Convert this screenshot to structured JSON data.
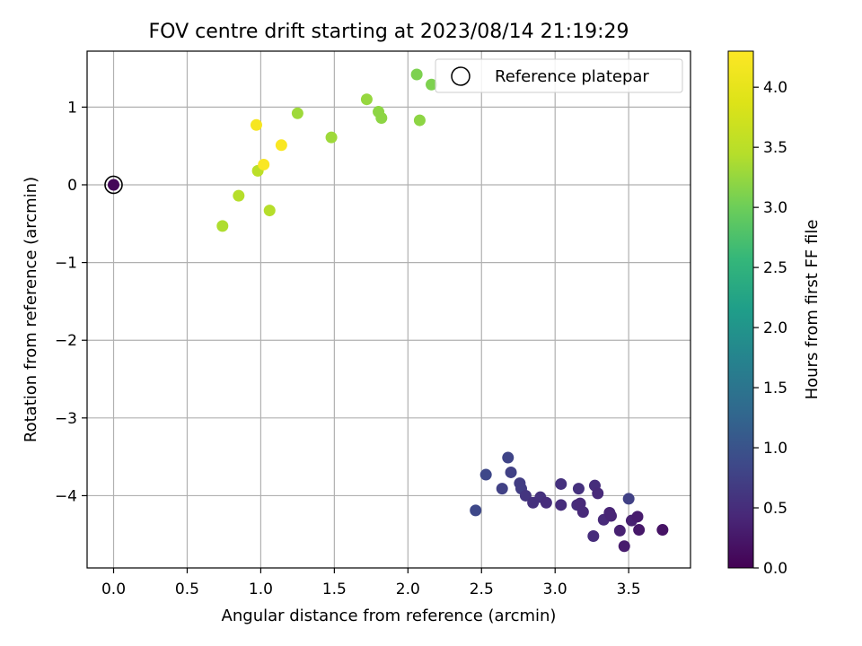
{
  "chart_data": {
    "type": "scatter",
    "title": "FOV centre drift starting at 2023/08/14 21:19:29",
    "xlabel": "Angular distance from reference (arcmin)",
    "ylabel": "Rotation from reference (arcmin)",
    "xlim": [
      -0.18,
      3.92
    ],
    "ylim": [
      -4.93,
      1.72
    ],
    "xticks": [
      0.0,
      0.5,
      1.0,
      1.5,
      2.0,
      2.5,
      3.0,
      3.5
    ],
    "xtick_labels": [
      "0.0",
      "0.5",
      "1.0",
      "1.5",
      "2.0",
      "2.5",
      "3.0",
      "3.5"
    ],
    "yticks": [
      -4,
      -3,
      -2,
      -1,
      0,
      1
    ],
    "ytick_labels": [
      "−4",
      "−3",
      "−2",
      "−1",
      "0",
      "1"
    ],
    "grid": true,
    "legend": {
      "placement": "top-right",
      "entries": [
        "Reference platepar"
      ]
    },
    "colorbar": {
      "label": "Hours from first FF file",
      "range": [
        0.0,
        4.3
      ],
      "ticks": [
        0.0,
        0.5,
        1.0,
        1.5,
        2.0,
        2.5,
        3.0,
        3.5,
        4.0
      ],
      "tick_labels": [
        "0.0",
        "0.5",
        "1.0",
        "1.5",
        "2.0",
        "2.5",
        "3.0",
        "3.5",
        "4.0"
      ],
      "colormap": "viridis"
    },
    "reference_point": {
      "x": 0.0,
      "y": 0.0
    },
    "points": [
      {
        "x": 0.0,
        "y": 0.0,
        "c": 0.05
      },
      {
        "x": 2.46,
        "y": -4.19,
        "c": 0.85
      },
      {
        "x": 2.53,
        "y": -3.73,
        "c": 0.85
      },
      {
        "x": 2.64,
        "y": -3.91,
        "c": 0.75
      },
      {
        "x": 2.68,
        "y": -3.51,
        "c": 0.8
      },
      {
        "x": 2.7,
        "y": -3.7,
        "c": 0.75
      },
      {
        "x": 2.76,
        "y": -3.84,
        "c": 0.7
      },
      {
        "x": 2.77,
        "y": -3.91,
        "c": 0.7
      },
      {
        "x": 2.8,
        "y": -4.0,
        "c": 0.6
      },
      {
        "x": 2.85,
        "y": -4.09,
        "c": 0.55
      },
      {
        "x": 2.9,
        "y": -4.02,
        "c": 0.55
      },
      {
        "x": 2.94,
        "y": -4.09,
        "c": 0.5
      },
      {
        "x": 3.04,
        "y": -3.85,
        "c": 0.55
      },
      {
        "x": 3.04,
        "y": -4.12,
        "c": 0.5
      },
      {
        "x": 3.16,
        "y": -3.91,
        "c": 0.55
      },
      {
        "x": 3.15,
        "y": -4.12,
        "c": 0.5
      },
      {
        "x": 3.17,
        "y": -4.1,
        "c": 0.45
      },
      {
        "x": 3.19,
        "y": -4.21,
        "c": 0.45
      },
      {
        "x": 3.26,
        "y": -4.52,
        "c": 0.5
      },
      {
        "x": 3.27,
        "y": -3.87,
        "c": 0.5
      },
      {
        "x": 3.29,
        "y": -3.97,
        "c": 0.45
      },
      {
        "x": 3.33,
        "y": -4.31,
        "c": 0.45
      },
      {
        "x": 3.37,
        "y": -4.22,
        "c": 0.4
      },
      {
        "x": 3.38,
        "y": -4.26,
        "c": 0.4
      },
      {
        "x": 3.44,
        "y": -4.45,
        "c": 0.35
      },
      {
        "x": 3.47,
        "y": -4.65,
        "c": 0.3
      },
      {
        "x": 3.5,
        "y": -4.04,
        "c": 0.75
      },
      {
        "x": 3.52,
        "y": -4.32,
        "c": 0.35
      },
      {
        "x": 3.56,
        "y": -4.27,
        "c": 0.3
      },
      {
        "x": 3.57,
        "y": -4.44,
        "c": 0.25
      },
      {
        "x": 3.73,
        "y": -4.44,
        "c": 0.2
      },
      {
        "x": 0.74,
        "y": -0.53,
        "c": 3.4
      },
      {
        "x": 0.85,
        "y": -0.14,
        "c": 3.45
      },
      {
        "x": 0.97,
        "y": 0.77,
        "c": 4.2
      },
      {
        "x": 0.98,
        "y": 0.18,
        "c": 3.5
      },
      {
        "x": 1.02,
        "y": 0.26,
        "c": 4.25
      },
      {
        "x": 1.06,
        "y": -0.33,
        "c": 3.45
      },
      {
        "x": 1.14,
        "y": 0.51,
        "c": 4.25
      },
      {
        "x": 1.25,
        "y": 0.92,
        "c": 3.3
      },
      {
        "x": 1.48,
        "y": 0.61,
        "c": 3.3
      },
      {
        "x": 1.72,
        "y": 1.1,
        "c": 3.25
      },
      {
        "x": 1.8,
        "y": 0.94,
        "c": 3.2
      },
      {
        "x": 1.82,
        "y": 0.86,
        "c": 3.2
      },
      {
        "x": 2.06,
        "y": 1.42,
        "c": 3.1
      },
      {
        "x": 2.08,
        "y": 0.83,
        "c": 3.2
      },
      {
        "x": 2.16,
        "y": 1.29,
        "c": 3.1
      }
    ]
  }
}
